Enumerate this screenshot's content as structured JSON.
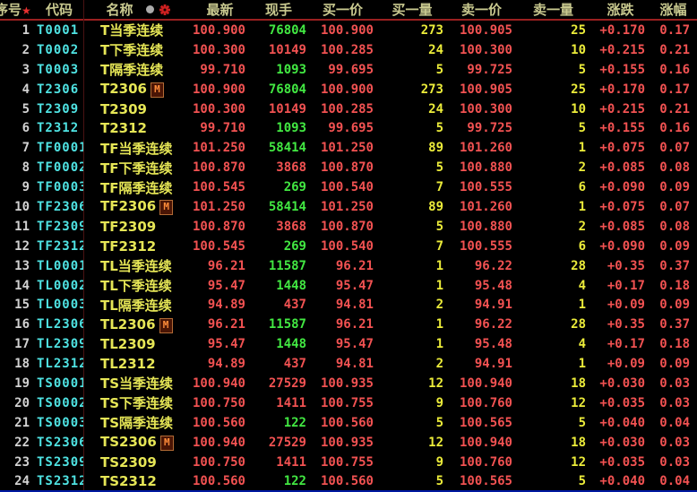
{
  "colors": {
    "background": "#000000",
    "up_red": "#F25252",
    "down_green": "#42E842",
    "quantity_yellow": "#ECEC3A",
    "code_cyan": "#4FE3E3",
    "name_yellow": "#E6E656",
    "header_khaki": "#C9C98F",
    "header_rule_red": "#9B2020",
    "bottom_rule_blue": "#0018A0"
  },
  "table": {
    "headers": {
      "seq": "序号",
      "seq_star": "★",
      "code": "代码",
      "name": "名称",
      "latest": "最新",
      "volume": "现手",
      "bid_price": "买一价",
      "bid_vol": "买一量",
      "ask_price": "卖一价",
      "ask_vol": "卖一量",
      "change": "涨跌",
      "change_pct": "涨幅"
    },
    "m_badge_label": "M",
    "rows": [
      {
        "seq": "1",
        "code": "T0001",
        "name": "T当季连续",
        "m": false,
        "latest": "100.900",
        "vol": "76804",
        "vol_c": "g",
        "bid": "100.900",
        "bid_v": "273",
        "ask": "100.905",
        "ask_v": "25",
        "chg": "+0.170",
        "pct": "0.17"
      },
      {
        "seq": "2",
        "code": "T0002",
        "name": "T下季连续",
        "m": false,
        "latest": "100.300",
        "vol": "10149",
        "vol_c": "r",
        "bid": "100.285",
        "bid_v": "24",
        "ask": "100.300",
        "ask_v": "10",
        "chg": "+0.215",
        "pct": "0.21"
      },
      {
        "seq": "3",
        "code": "T0003",
        "name": "T隔季连续",
        "m": false,
        "latest": "99.710",
        "vol": "1093",
        "vol_c": "g",
        "bid": "99.695",
        "bid_v": "5",
        "ask": "99.725",
        "ask_v": "5",
        "chg": "+0.155",
        "pct": "0.16"
      },
      {
        "seq": "4",
        "code": "T2306",
        "name": "T2306",
        "m": true,
        "latest": "100.900",
        "vol": "76804",
        "vol_c": "g",
        "bid": "100.900",
        "bid_v": "273",
        "ask": "100.905",
        "ask_v": "25",
        "chg": "+0.170",
        "pct": "0.17"
      },
      {
        "seq": "5",
        "code": "T2309",
        "name": "T2309",
        "m": false,
        "latest": "100.300",
        "vol": "10149",
        "vol_c": "r",
        "bid": "100.285",
        "bid_v": "24",
        "ask": "100.300",
        "ask_v": "10",
        "chg": "+0.215",
        "pct": "0.21"
      },
      {
        "seq": "6",
        "code": "T2312",
        "name": "T2312",
        "m": false,
        "latest": "99.710",
        "vol": "1093",
        "vol_c": "g",
        "bid": "99.695",
        "bid_v": "5",
        "ask": "99.725",
        "ask_v": "5",
        "chg": "+0.155",
        "pct": "0.16"
      },
      {
        "seq": "7",
        "code": "TF0001",
        "name": "TF当季连续",
        "m": false,
        "latest": "101.250",
        "vol": "58414",
        "vol_c": "g",
        "bid": "101.250",
        "bid_v": "89",
        "ask": "101.260",
        "ask_v": "1",
        "chg": "+0.075",
        "pct": "0.07"
      },
      {
        "seq": "8",
        "code": "TF0002",
        "name": "TF下季连续",
        "m": false,
        "latest": "100.870",
        "vol": "3868",
        "vol_c": "r",
        "bid": "100.870",
        "bid_v": "5",
        "ask": "100.880",
        "ask_v": "2",
        "chg": "+0.085",
        "pct": "0.08"
      },
      {
        "seq": "9",
        "code": "TF0003",
        "name": "TF隔季连续",
        "m": false,
        "latest": "100.545",
        "vol": "269",
        "vol_c": "g",
        "bid": "100.540",
        "bid_v": "7",
        "ask": "100.555",
        "ask_v": "6",
        "chg": "+0.090",
        "pct": "0.09"
      },
      {
        "seq": "10",
        "code": "TF2306",
        "name": "TF2306",
        "m": true,
        "latest": "101.250",
        "vol": "58414",
        "vol_c": "g",
        "bid": "101.250",
        "bid_v": "89",
        "ask": "101.260",
        "ask_v": "1",
        "chg": "+0.075",
        "pct": "0.07"
      },
      {
        "seq": "11",
        "code": "TF2309",
        "name": "TF2309",
        "m": false,
        "latest": "100.870",
        "vol": "3868",
        "vol_c": "r",
        "bid": "100.870",
        "bid_v": "5",
        "ask": "100.880",
        "ask_v": "2",
        "chg": "+0.085",
        "pct": "0.08"
      },
      {
        "seq": "12",
        "code": "TF2312",
        "name": "TF2312",
        "m": false,
        "latest": "100.545",
        "vol": "269",
        "vol_c": "g",
        "bid": "100.540",
        "bid_v": "7",
        "ask": "100.555",
        "ask_v": "6",
        "chg": "+0.090",
        "pct": "0.09"
      },
      {
        "seq": "13",
        "code": "TL0001",
        "name": "TL当季连续",
        "m": false,
        "latest": "96.21",
        "vol": "11587",
        "vol_c": "g",
        "bid": "96.21",
        "bid_v": "1",
        "ask": "96.22",
        "ask_v": "28",
        "chg": "+0.35",
        "pct": "0.37"
      },
      {
        "seq": "14",
        "code": "TL0002",
        "name": "TL下季连续",
        "m": false,
        "latest": "95.47",
        "vol": "1448",
        "vol_c": "g",
        "bid": "95.47",
        "bid_v": "1",
        "ask": "95.48",
        "ask_v": "4",
        "chg": "+0.17",
        "pct": "0.18"
      },
      {
        "seq": "15",
        "code": "TL0003",
        "name": "TL隔季连续",
        "m": false,
        "latest": "94.89",
        "vol": "437",
        "vol_c": "r",
        "bid": "94.81",
        "bid_v": "2",
        "ask": "94.91",
        "ask_v": "1",
        "chg": "+0.09",
        "pct": "0.09"
      },
      {
        "seq": "16",
        "code": "TL2306",
        "name": "TL2306",
        "m": true,
        "latest": "96.21",
        "vol": "11587",
        "vol_c": "g",
        "bid": "96.21",
        "bid_v": "1",
        "ask": "96.22",
        "ask_v": "28",
        "chg": "+0.35",
        "pct": "0.37"
      },
      {
        "seq": "17",
        "code": "TL2309",
        "name": "TL2309",
        "m": false,
        "latest": "95.47",
        "vol": "1448",
        "vol_c": "g",
        "bid": "95.47",
        "bid_v": "1",
        "ask": "95.48",
        "ask_v": "4",
        "chg": "+0.17",
        "pct": "0.18"
      },
      {
        "seq": "18",
        "code": "TL2312",
        "name": "TL2312",
        "m": false,
        "latest": "94.89",
        "vol": "437",
        "vol_c": "r",
        "bid": "94.81",
        "bid_v": "2",
        "ask": "94.91",
        "ask_v": "1",
        "chg": "+0.09",
        "pct": "0.09"
      },
      {
        "seq": "19",
        "code": "TS0001",
        "name": "TS当季连续",
        "m": false,
        "latest": "100.940",
        "vol": "27529",
        "vol_c": "r",
        "bid": "100.935",
        "bid_v": "12",
        "ask": "100.940",
        "ask_v": "18",
        "chg": "+0.030",
        "pct": "0.03"
      },
      {
        "seq": "20",
        "code": "TS0002",
        "name": "TS下季连续",
        "m": false,
        "latest": "100.750",
        "vol": "1411",
        "vol_c": "r",
        "bid": "100.755",
        "bid_v": "9",
        "ask": "100.760",
        "ask_v": "12",
        "chg": "+0.035",
        "pct": "0.03"
      },
      {
        "seq": "21",
        "code": "TS0003",
        "name": "TS隔季连续",
        "m": false,
        "latest": "100.560",
        "vol": "122",
        "vol_c": "g",
        "bid": "100.560",
        "bid_v": "5",
        "ask": "100.565",
        "ask_v": "5",
        "chg": "+0.040",
        "pct": "0.04"
      },
      {
        "seq": "22",
        "code": "TS2306",
        "name": "TS2306",
        "m": true,
        "latest": "100.940",
        "vol": "27529",
        "vol_c": "r",
        "bid": "100.935",
        "bid_v": "12",
        "ask": "100.940",
        "ask_v": "18",
        "chg": "+0.030",
        "pct": "0.03"
      },
      {
        "seq": "23",
        "code": "TS2309",
        "name": "TS2309",
        "m": false,
        "latest": "100.750",
        "vol": "1411",
        "vol_c": "r",
        "bid": "100.755",
        "bid_v": "9",
        "ask": "100.760",
        "ask_v": "12",
        "chg": "+0.035",
        "pct": "0.03"
      },
      {
        "seq": "24",
        "code": "TS2312",
        "name": "TS2312",
        "m": false,
        "latest": "100.560",
        "vol": "122",
        "vol_c": "g",
        "bid": "100.560",
        "bid_v": "5",
        "ask": "100.565",
        "ask_v": "5",
        "chg": "+0.040",
        "pct": "0.04"
      }
    ]
  }
}
